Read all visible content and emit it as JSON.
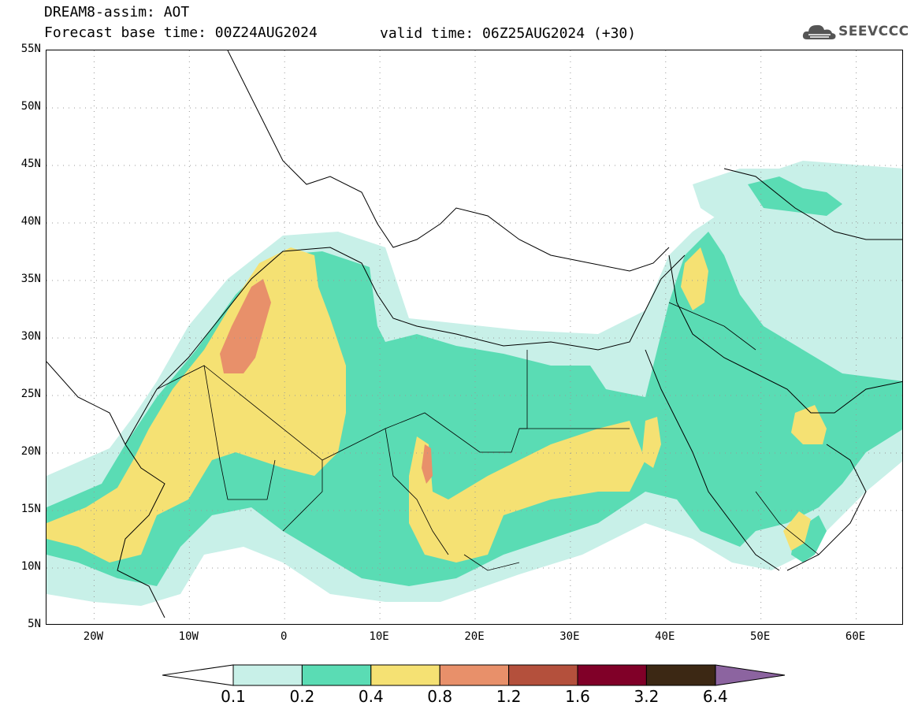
{
  "header": {
    "title": "DREAM8-assim: AOT",
    "base_time": "Forecast base time: 00Z24AUG2024",
    "valid_time": "valid time: 06Z25AUG2024 (+30)",
    "logo_text": "SEEVCCC"
  },
  "map": {
    "projection": "equirectangular",
    "lon_range": [
      -25,
      65
    ],
    "lat_range": [
      5,
      55
    ],
    "lat_ticks": [
      "55N",
      "50N",
      "45N",
      "40N",
      "35N",
      "30N",
      "25N",
      "20N",
      "15N",
      "10N",
      "5N"
    ],
    "lon_ticks": [
      "20W",
      "10W",
      "0",
      "10E",
      "20E",
      "30E",
      "40E",
      "50E",
      "60E"
    ],
    "gridlines": "dotted",
    "coastline_color": "#000000"
  },
  "colorbar": {
    "levels": [
      "0.1",
      "0.2",
      "0.4",
      "0.8",
      "1.2",
      "1.6",
      "3.2",
      "6.4"
    ],
    "colors": [
      "#c8f0e8",
      "#5adcb4",
      "#f5e173",
      "#e8906a",
      "#b4503c",
      "#800028",
      "#3c2814",
      "#8c64a0"
    ],
    "extend": "both"
  }
}
